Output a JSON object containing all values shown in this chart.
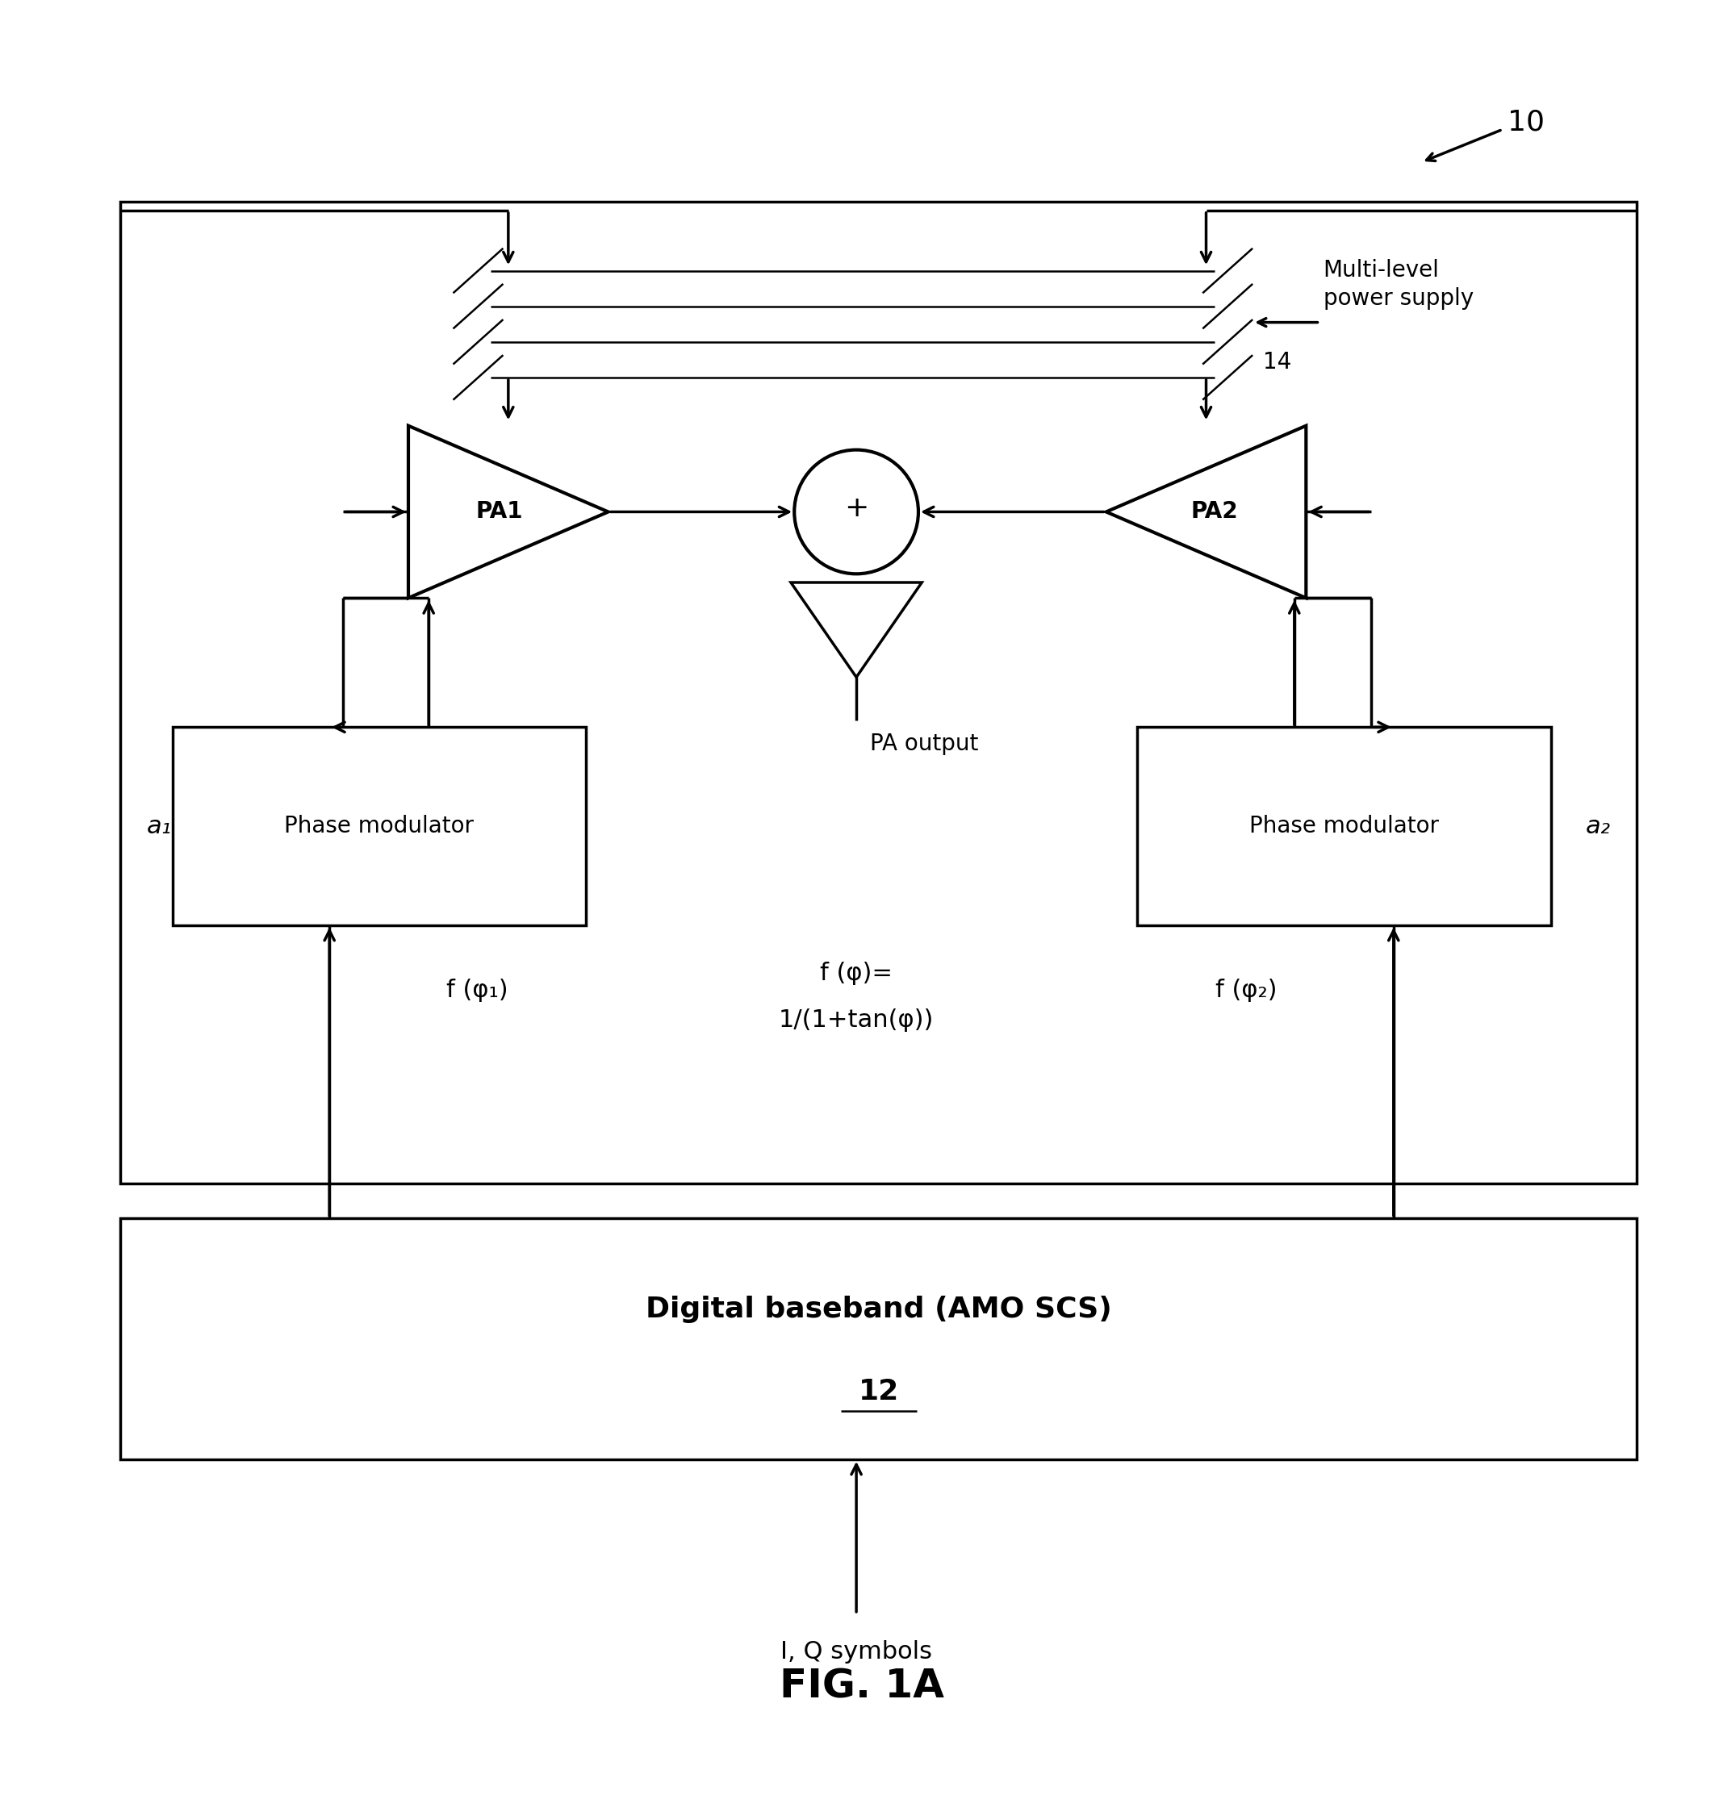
{
  "bg_color": "#ffffff",
  "line_color": "#000000",
  "fig_width": 21.35,
  "fig_height": 22.51,
  "title": "FIG. 1A",
  "ref_number": "10",
  "dbb_label": "Digital baseband (AMO SCS)",
  "dbb_ref": "12",
  "pm1_label": "Phase modulator",
  "pm2_label": "Phase modulator",
  "pa1_label": "PA1",
  "pa2_label": "PA2",
  "supply_label": "Multi-level\npower supply",
  "supply_ref": "14",
  "pa_output_label": "PA output",
  "f_phi_center_line1": "f (φ)=",
  "f_phi_center_line2": "1/(1+tan(φ))",
  "a1_label": "a₁",
  "a2_label": "a₂",
  "f_phi1_label": "f (φ₁)",
  "f_phi2_label": "f (φ₂)",
  "iq_label": "I, Q symbols"
}
